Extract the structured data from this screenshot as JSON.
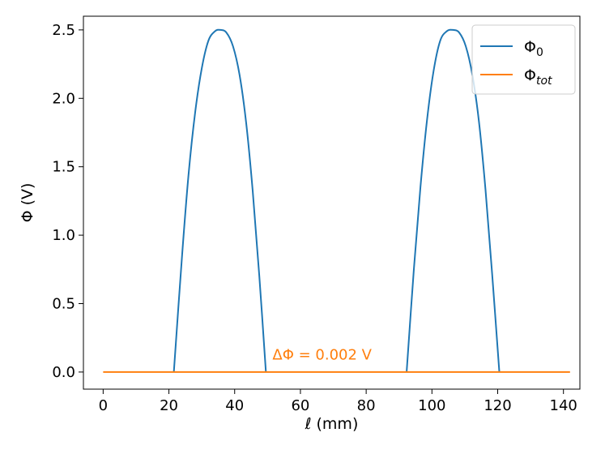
{
  "chart_data": {
    "type": "line",
    "xlabel": "ℓ (mm)",
    "ylabel": "Φ (V)",
    "xlim": [
      -6,
      145
    ],
    "ylim": [
      -0.125,
      2.6
    ],
    "xticks": [
      0,
      20,
      40,
      60,
      80,
      100,
      120,
      140
    ],
    "yticks": [
      0.0,
      0.5,
      1.0,
      1.5,
      2.0,
      2.5
    ],
    "xtick_labels": [
      "0",
      "20",
      "40",
      "60",
      "80",
      "100",
      "120",
      "140"
    ],
    "ytick_labels": [
      "0.0",
      "0.5",
      "1.0",
      "1.5",
      "2.0",
      "2.5"
    ],
    "grid": false,
    "legend_position": "top-right",
    "series": [
      {
        "name": "Φ",
        "name_sub": "0",
        "color": "#1f77b4",
        "segments": [
          {
            "x": [
              21.5,
              24,
              26,
              28,
              30,
              32,
              34,
              35.7,
              37.5,
              39.5,
              41.5,
              43.5,
              45.5,
              47.5,
              49.5
            ],
            "y": [
              0.0,
              0.85,
              1.45,
              1.9,
              2.22,
              2.42,
              2.49,
              2.5,
              2.48,
              2.38,
              2.17,
              1.82,
              1.32,
              0.7,
              0.0
            ]
          },
          {
            "x": [
              92.3,
              94.5,
              96.5,
              98.5,
              100.5,
              102.5,
              104.5,
              106.4,
              108.3,
              110.3,
              112.3,
              114.3,
              116.3,
              118.3,
              120.5
            ],
            "y": [
              0.0,
              0.75,
              1.35,
              1.84,
              2.2,
              2.42,
              2.49,
              2.5,
              2.48,
              2.38,
              2.17,
              1.83,
              1.33,
              0.72,
              0.0
            ]
          }
        ]
      },
      {
        "name": "Φ",
        "name_sub": "tot",
        "color": "#ff7f0e",
        "segments": [
          {
            "x": [
              0,
              142
            ],
            "y": [
              0.0,
              0.0
            ]
          }
        ]
      }
    ],
    "annotation": {
      "text": "ΔΦ =  0.002 V",
      "x": 51.5,
      "y": 0.09,
      "color": "#ff7f0e"
    }
  }
}
